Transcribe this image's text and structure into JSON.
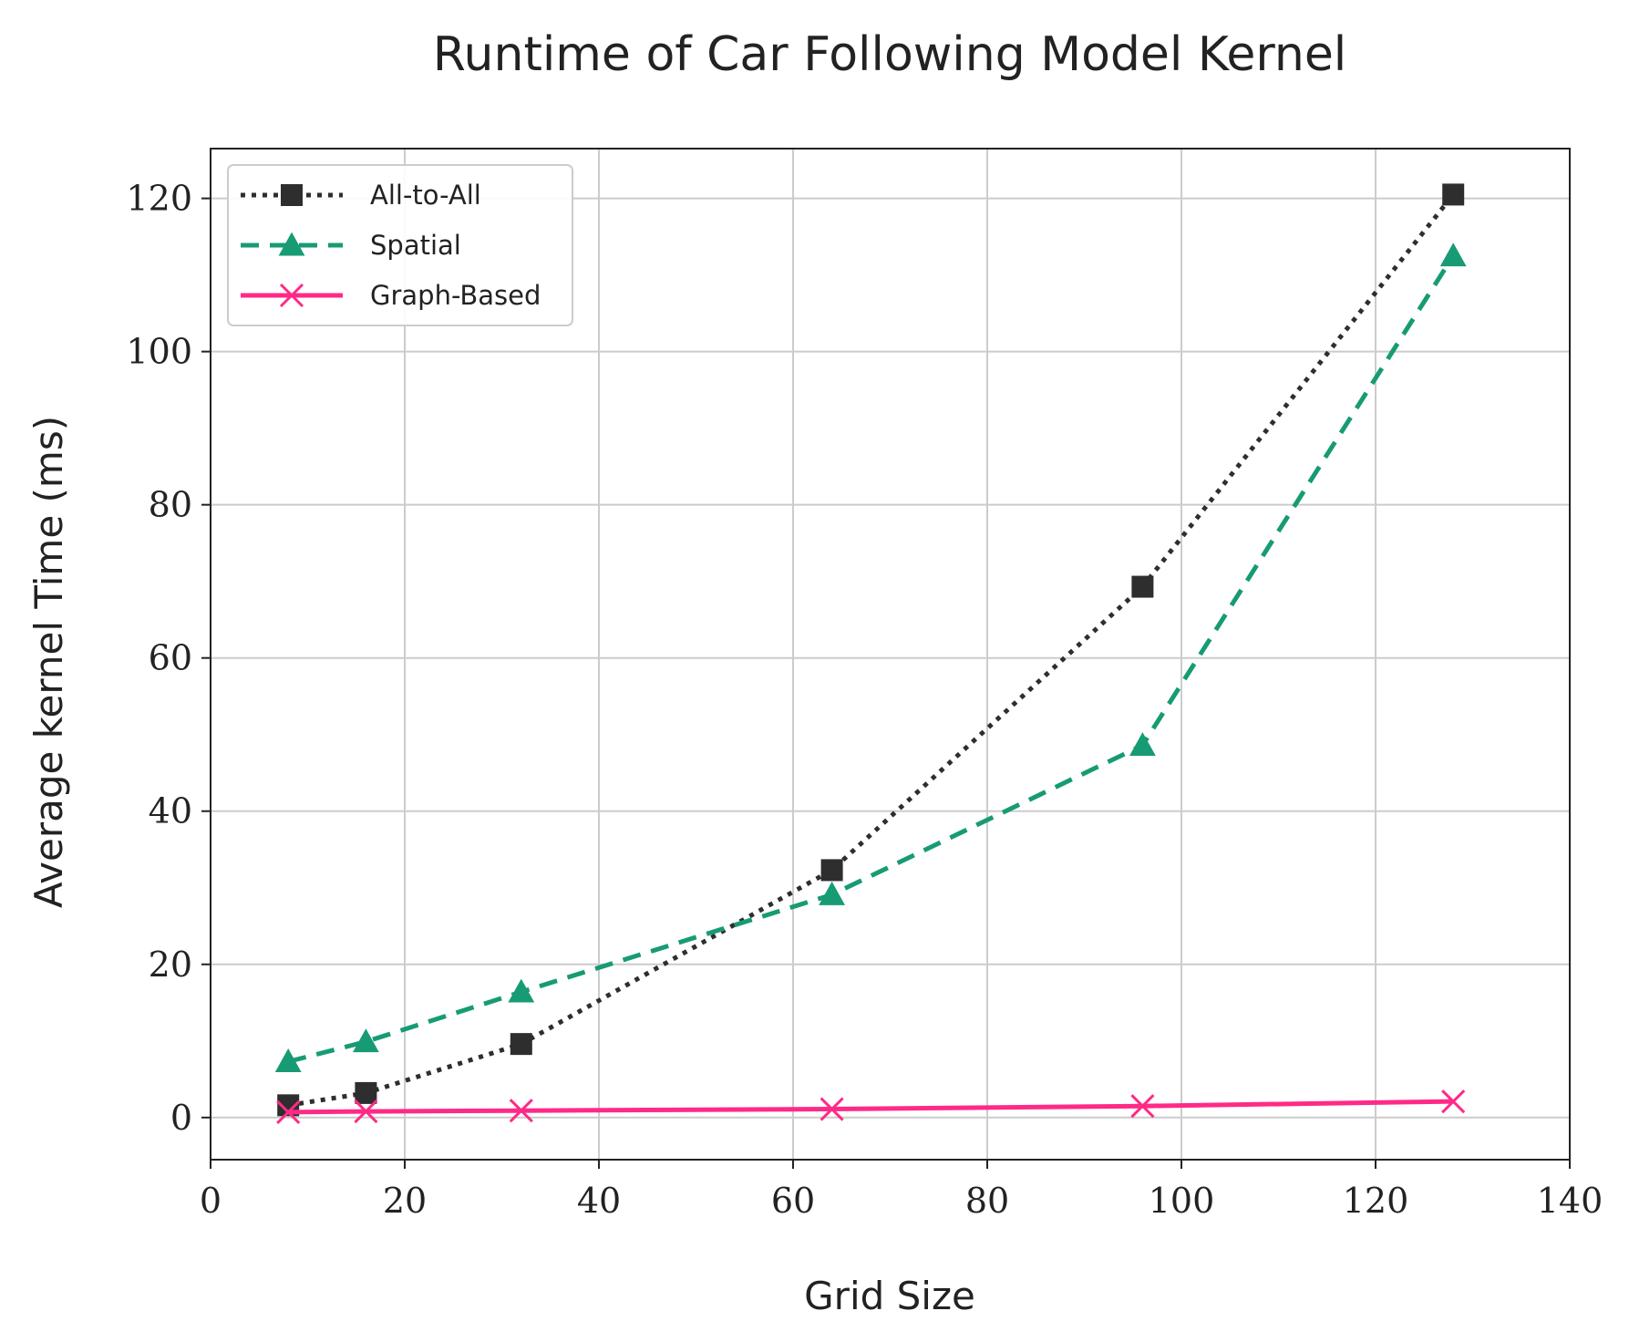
{
  "chart_data": {
    "type": "line",
    "title": "Runtime of Car Following Model Kernel",
    "xlabel": "Grid Size",
    "ylabel": "Average kernel Time (ms)",
    "xlim": [
      0,
      140
    ],
    "ylim": [
      -5.5,
      126.5
    ],
    "xticks": [
      0,
      20,
      40,
      60,
      80,
      100,
      120,
      140
    ],
    "yticks": [
      0,
      20,
      40,
      60,
      80,
      100,
      120
    ],
    "grid": true,
    "legend_position": "top-left",
    "x": [
      8,
      16,
      32,
      64,
      96,
      128
    ],
    "series": [
      {
        "name": "All-to-All",
        "values": [
          1.6,
          3.2,
          9.6,
          32.3,
          69.3,
          120.5
        ],
        "color": "#2e2e2e",
        "line_style": "dotted",
        "marker": "square"
      },
      {
        "name": "Spatial",
        "values": [
          7.3,
          9.9,
          16.4,
          29.1,
          48.6,
          112.5
        ],
        "color": "#179b74",
        "line_style": "dashed",
        "marker": "triangle"
      },
      {
        "name": "Graph-Based",
        "values": [
          0.7,
          0.8,
          0.9,
          1.1,
          1.5,
          2.1
        ],
        "color": "#ff2a87",
        "line_style": "solid",
        "marker": "x"
      }
    ]
  }
}
